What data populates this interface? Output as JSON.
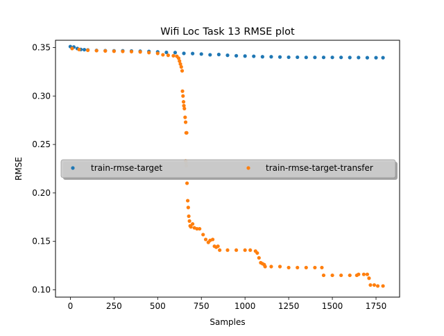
{
  "chart_data": {
    "type": "scatter",
    "title": "Wifi Loc Task 13 RMSE plot",
    "xlabel": "Samples",
    "ylabel": "RMSE",
    "xlim": [
      -85,
      1885
    ],
    "ylim": [
      0.0925,
      0.3575
    ],
    "xticks": [
      0,
      250,
      500,
      750,
      1000,
      1250,
      1500,
      1750
    ],
    "xtick_labels": [
      "0",
      "250",
      "500",
      "750",
      "1000",
      "1250",
      "1500",
      "1750"
    ],
    "yticks": [
      0.1,
      0.15,
      0.2,
      0.25,
      0.3,
      0.35
    ],
    "ytick_labels": [
      "0.10",
      "0.15",
      "0.20",
      "0.25",
      "0.30",
      "0.35"
    ],
    "grid": false,
    "legend": {
      "placement": "center",
      "columns": 2
    },
    "series": [
      {
        "name": "train-rmse-target",
        "color": "#1f77b4",
        "points": [
          [
            0,
            0.351
          ],
          [
            20,
            0.3505
          ],
          [
            40,
            0.349
          ],
          [
            60,
            0.348
          ],
          [
            80,
            0.3478
          ],
          [
            100,
            0.3475
          ],
          [
            150,
            0.347
          ],
          [
            200,
            0.3468
          ],
          [
            250,
            0.3466
          ],
          [
            300,
            0.3466
          ],
          [
            350,
            0.3464
          ],
          [
            400,
            0.3462
          ],
          [
            450,
            0.346
          ],
          [
            500,
            0.3455
          ],
          [
            550,
            0.345
          ],
          [
            600,
            0.3448
          ],
          [
            650,
            0.344
          ],
          [
            700,
            0.3438
          ],
          [
            750,
            0.3433
          ],
          [
            800,
            0.3425
          ],
          [
            850,
            0.3428
          ],
          [
            900,
            0.342
          ],
          [
            950,
            0.3415
          ],
          [
            1000,
            0.3412
          ],
          [
            1050,
            0.341
          ],
          [
            1100,
            0.3405
          ],
          [
            1150,
            0.3405
          ],
          [
            1200,
            0.3402
          ],
          [
            1250,
            0.34
          ],
          [
            1300,
            0.34
          ],
          [
            1350,
            0.3398
          ],
          [
            1400,
            0.3398
          ],
          [
            1450,
            0.3398
          ],
          [
            1500,
            0.3398
          ],
          [
            1550,
            0.3398
          ],
          [
            1600,
            0.3397
          ],
          [
            1650,
            0.3397
          ],
          [
            1700,
            0.3395
          ],
          [
            1750,
            0.3395
          ],
          [
            1790,
            0.3395
          ]
        ]
      },
      {
        "name": "train-rmse-target-transfer",
        "color": "#ff7f0e",
        "points": [
          [
            10,
            0.349
          ],
          [
            50,
            0.348
          ],
          [
            100,
            0.3472
          ],
          [
            150,
            0.3468
          ],
          [
            200,
            0.3465
          ],
          [
            250,
            0.3462
          ],
          [
            300,
            0.346
          ],
          [
            350,
            0.3458
          ],
          [
            400,
            0.3455
          ],
          [
            450,
            0.3448
          ],
          [
            500,
            0.344
          ],
          [
            530,
            0.3425
          ],
          [
            560,
            0.342
          ],
          [
            590,
            0.3415
          ],
          [
            610,
            0.341
          ],
          [
            620,
            0.339
          ],
          [
            625,
            0.336
          ],
          [
            630,
            0.333
          ],
          [
            635,
            0.33
          ],
          [
            640,
            0.326
          ],
          [
            642,
            0.305
          ],
          [
            645,
            0.3
          ],
          [
            648,
            0.294
          ],
          [
            650,
            0.29
          ],
          [
            653,
            0.287
          ],
          [
            657,
            0.278
          ],
          [
            660,
            0.273
          ],
          [
            663,
            0.262
          ],
          [
            666,
            0.262
          ],
          [
            660,
            0.233
          ],
          [
            662,
            0.231
          ],
          [
            664,
            0.228
          ],
          [
            668,
            0.21
          ],
          [
            672,
            0.192
          ],
          [
            675,
            0.185
          ],
          [
            678,
            0.176
          ],
          [
            682,
            0.171
          ],
          [
            686,
            0.166
          ],
          [
            690,
            0.165
          ],
          [
            700,
            0.168
          ],
          [
            710,
            0.164
          ],
          [
            725,
            0.163
          ],
          [
            740,
            0.163
          ],
          [
            760,
            0.157
          ],
          [
            775,
            0.152
          ],
          [
            790,
            0.149
          ],
          [
            800,
            0.151
          ],
          [
            815,
            0.152
          ],
          [
            825,
            0.145
          ],
          [
            835,
            0.144
          ],
          [
            845,
            0.145
          ],
          [
            855,
            0.141
          ],
          [
            900,
            0.141
          ],
          [
            950,
            0.141
          ],
          [
            1000,
            0.141
          ],
          [
            1030,
            0.141
          ],
          [
            1060,
            0.14
          ],
          [
            1070,
            0.138
          ],
          [
            1080,
            0.133
          ],
          [
            1090,
            0.128
          ],
          [
            1100,
            0.127
          ],
          [
            1110,
            0.126
          ],
          [
            1115,
            0.124
          ],
          [
            1150,
            0.124
          ],
          [
            1200,
            0.124
          ],
          [
            1250,
            0.123
          ],
          [
            1300,
            0.123
          ],
          [
            1350,
            0.123
          ],
          [
            1400,
            0.123
          ],
          [
            1440,
            0.123
          ],
          [
            1450,
            0.115
          ],
          [
            1500,
            0.115
          ],
          [
            1550,
            0.115
          ],
          [
            1600,
            0.115
          ],
          [
            1640,
            0.115
          ],
          [
            1650,
            0.116
          ],
          [
            1680,
            0.116
          ],
          [
            1700,
            0.116
          ],
          [
            1710,
            0.112
          ],
          [
            1718,
            0.105
          ],
          [
            1740,
            0.105
          ],
          [
            1760,
            0.104
          ],
          [
            1790,
            0.104
          ]
        ]
      }
    ]
  }
}
